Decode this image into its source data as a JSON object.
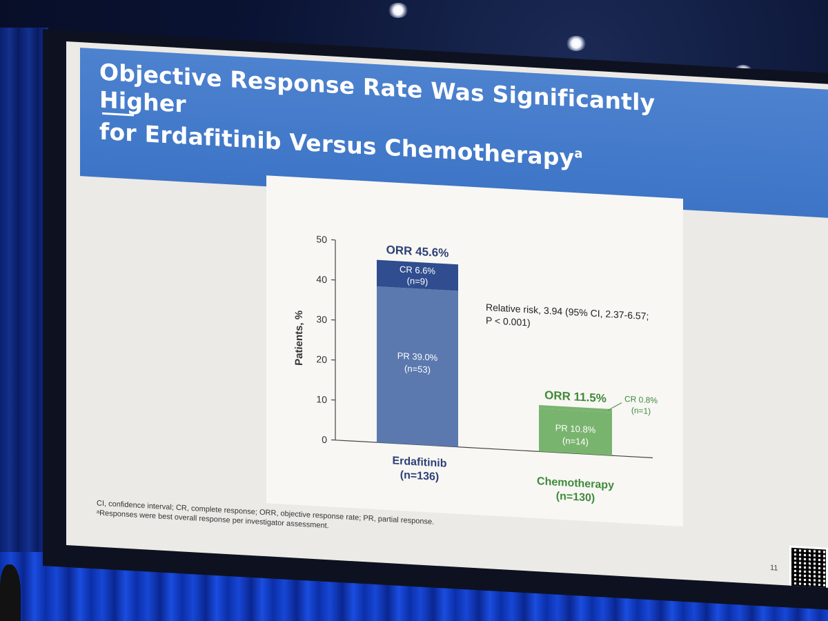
{
  "slide": {
    "title_line1": "Objective Response Rate Was Significantly Higher",
    "title_line2": "for Erdafitinib Versus Chemotherapy",
    "title_superscript": "a",
    "footnote_line1": "CI, confidence interval; CR, complete response; ORR, objective response rate; PR, partial response.",
    "footnote_line2": "ᵃResponses were best overall response per investigator assessment.",
    "page_number": "11"
  },
  "colors": {
    "banner": "#4079c7",
    "erdafitinib_pr": "#5b79ae",
    "erdafitinib_cr": "#2f4d8f",
    "chemo_fill": "#79b46f",
    "chemo_text": "#3f8a3b",
    "erda_text": "#2d3f75"
  },
  "chart_data": {
    "type": "bar",
    "stacked": true,
    "ylabel": "Patients, %",
    "ylim": [
      0,
      50
    ],
    "yticks": [
      0,
      10,
      20,
      30,
      40,
      50
    ],
    "categories": [
      {
        "name": "Erdafitinib",
        "n_label": "(n=136)"
      },
      {
        "name": "Chemotherapy",
        "n_label": "(n=130)"
      }
    ],
    "series": [
      {
        "name": "PR",
        "values": [
          39.0,
          10.8
        ],
        "labels": [
          "PR 39.0%",
          "PR 10.8%"
        ],
        "n_labels": [
          "(n=53)",
          "(n=14)"
        ]
      },
      {
        "name": "CR",
        "values": [
          6.6,
          0.8
        ],
        "labels": [
          "CR 6.6%",
          "CR 0.8%"
        ],
        "n_labels": [
          "(n=9)",
          "(n=1)"
        ]
      }
    ],
    "totals": [
      45.6,
      11.5
    ],
    "total_labels": [
      "ORR 45.6%",
      "ORR 11.5%"
    ],
    "annotation_line1": "Relative risk, 3.94 (95% CI, 2.37-6.57;",
    "annotation_line2": "P < 0.001)",
    "legend": "none",
    "grid": false
  }
}
